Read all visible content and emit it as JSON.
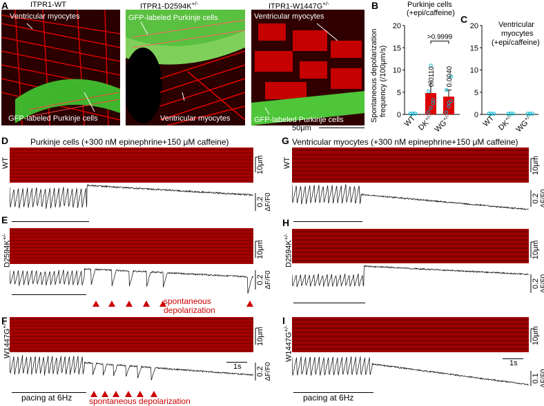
{
  "panels": {
    "A": {
      "letter": "A",
      "titles": [
        "ITPR1-WT",
        "ITPR1-D2594K",
        "ITPR1-W1447G"
      ],
      "sup": [
        "",
        "+/-",
        "+/-"
      ],
      "img1_labels": [
        "Ventricular myocytes",
        "GFP-labeled Purkinje cells"
      ],
      "img2_labels": [
        "GFP-labeled Purkinje cells",
        "Ventricular myocytes"
      ],
      "img3_labels": [
        "Ventricular myocytes",
        "GFP-labeled Purkinje cells"
      ],
      "scalebar": "50μm"
    },
    "B": {
      "letter": "B",
      "title_line1": "Purkinje cells",
      "title_line2": "(+epi/caffeine)",
      "ylabel_line1": "Spontaneous depolarization",
      "ylabel_line2": "frequency (/100μm/s)",
      "ticks": [
        "0",
        "5",
        "10",
        "15",
        "20"
      ],
      "bracket_label": ">0.9999",
      "bar_p1": "0.0110",
      "bar_p2": "0.0040",
      "categories": [
        "WT",
        "DK",
        "WG"
      ],
      "cat_sup": [
        "",
        "+/-",
        "+/-"
      ]
    },
    "C": {
      "letter": "C",
      "title_line1": "Ventricular",
      "title_line2": "myocytes",
      "title_line3": "(+epi/caffeine)",
      "ticks": [
        "0",
        "5",
        "10",
        "15",
        "20"
      ],
      "categories": [
        "WT",
        "DK",
        "WG"
      ],
      "cat_sup": [
        "",
        "+/-",
        "+/-"
      ]
    },
    "D": {
      "letter": "D",
      "header": "Purkinje cells (+300 nM epinephrine+150 μM caffeine)",
      "row": "WT",
      "row_sup": ""
    },
    "E": {
      "letter": "E",
      "row": "D2594K",
      "row_sup": "+/-",
      "annot": "spontaneous",
      "annot2": "depolarization"
    },
    "F": {
      "letter": "F",
      "row": "W1447G",
      "row_sup": "+/-",
      "pacing": "pacing at 6Hz",
      "annot": "spontaneous depolarization",
      "time": "1s"
    },
    "G": {
      "letter": "G",
      "header": "Ventricular myocytes (+300 nM epinephrine+150 μM caffeine)",
      "row": "WT",
      "row_sup": ""
    },
    "H": {
      "letter": "H",
      "row": "D2594K",
      "row_sup": "+/-"
    },
    "I": {
      "letter": "I",
      "row": "W1447G",
      "row_sup": "+/-",
      "pacing": "pacing at 6Hz",
      "time": "1s"
    }
  },
  "scales": {
    "space": "10μm",
    "amp_02": "0.2",
    "amp_01": "0.1",
    "dff": "ΔF/F0"
  },
  "colors": {
    "kymo": "#a00000",
    "bar": "#dd0000",
    "points": "#00bcd4",
    "annot": "#cc0000"
  },
  "chart_data": [
    {
      "type": "bar",
      "panel": "B",
      "title": "Purkinje cells (+epi/caffeine)",
      "ylabel": "Spontaneous depolarization frequency (/100μm/s)",
      "ylim": [
        0,
        20
      ],
      "categories": [
        "WT",
        "DK+/-",
        "WG+/-"
      ],
      "values": [
        0,
        4.8,
        4.0
      ],
      "errors": [
        0,
        2.5,
        1.5
      ],
      "points": [
        [
          0,
          0,
          0,
          0,
          0,
          0
        ],
        [
          0.5,
          1.5,
          3.2,
          5.2,
          11.0,
          2.5
        ],
        [
          0.5,
          1.8,
          3.0,
          5.5,
          2.6,
          8.5
        ]
      ]
    },
    {
      "type": "bar",
      "panel": "C",
      "title": "Ventricular myocytes (+epi/caffeine)",
      "ylim": [
        0,
        20
      ],
      "categories": [
        "WT",
        "DK+/-",
        "WG+/-"
      ],
      "values": [
        0,
        0,
        0
      ],
      "points": [
        [
          0,
          0,
          0,
          0,
          0
        ],
        [
          0,
          0,
          0,
          0,
          0
        ],
        [
          0,
          0,
          0,
          0,
          0
        ]
      ]
    }
  ]
}
